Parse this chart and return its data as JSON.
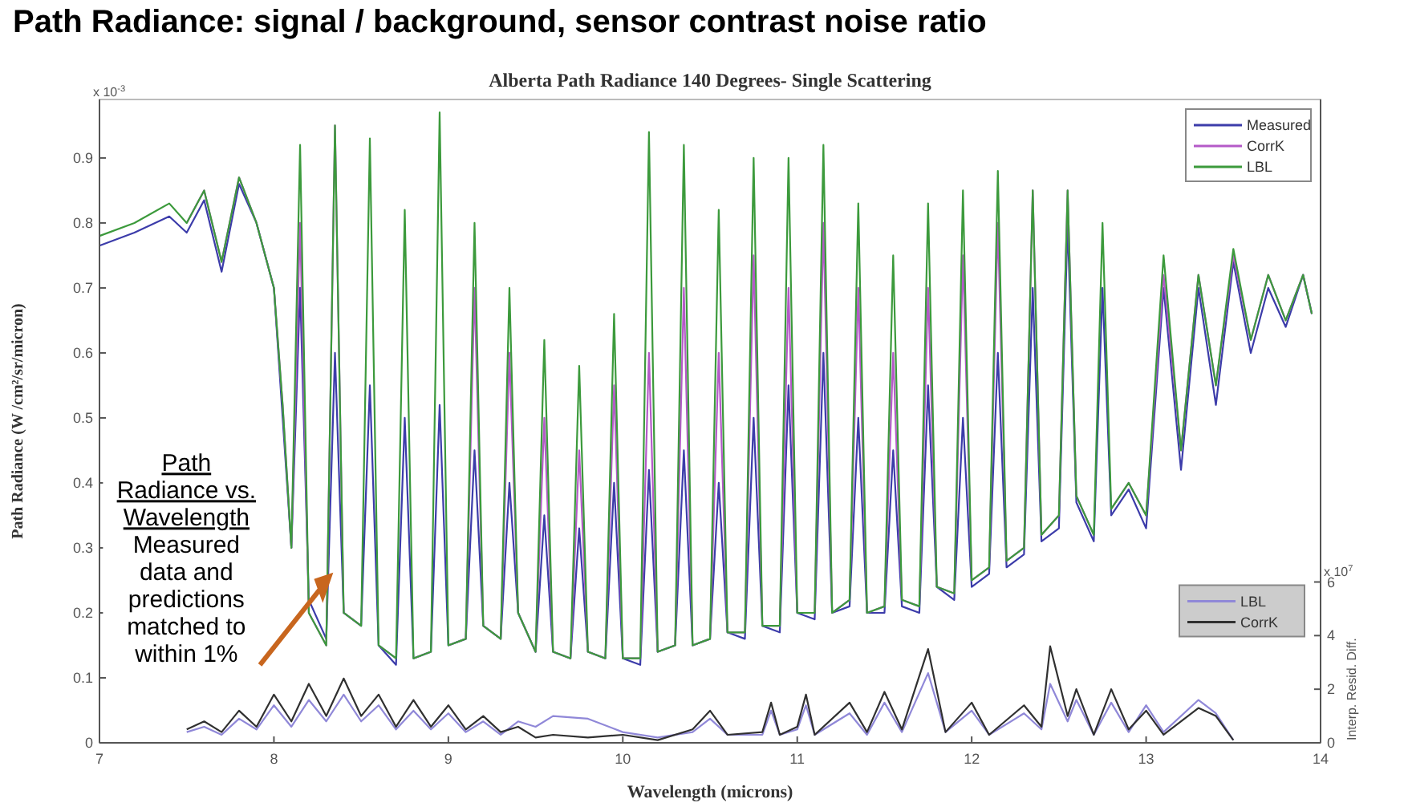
{
  "chart_data": {
    "type": "line",
    "title": "Path Radiance: signal / background, sensor contrast noise ratio",
    "subtitle": "Alberta Path Radiance 140 Degrees- Single Scattering",
    "xlabel": "Wavelength (microns)",
    "ylabel": "Path Radiance (W /cm²/sr/micron)",
    "y2label": "Interp. Resid. Diff.",
    "annotations": [
      "Path Radiance vs. Wavelength",
      "Measured data and predictions matched to within 1%",
      "x 10$^{-3}$",
      "x 10$^{7}$"
    ],
    "x": [
      7.0,
      7.2,
      7.4,
      7.5,
      7.6,
      7.7,
      7.8,
      7.9,
      8.0,
      8.05,
      8.1,
      8.15,
      8.2,
      8.3,
      8.35,
      8.4,
      8.5,
      8.55,
      8.6,
      8.7,
      8.75,
      8.8,
      8.9,
      8.95,
      9.0,
      9.1,
      9.15,
      9.2,
      9.3,
      9.35,
      9.4,
      9.5,
      9.55,
      9.6,
      9.7,
      9.75,
      9.8,
      9.9,
      9.95,
      10.0,
      10.1,
      10.15,
      10.2,
      10.3,
      10.35,
      10.4,
      10.5,
      10.55,
      10.6,
      10.7,
      10.75,
      10.8,
      10.9,
      10.95,
      11.0,
      11.1,
      11.15,
      11.2,
      11.3,
      11.35,
      11.4,
      11.5,
      11.55,
      11.6,
      11.7,
      11.75,
      11.8,
      11.9,
      11.95,
      12.0,
      12.1,
      12.15,
      12.2,
      12.3,
      12.35,
      12.4,
      12.5,
      12.55,
      12.6,
      12.7,
      12.75,
      12.8,
      12.9,
      13.0,
      13.1,
      13.2,
      13.3,
      13.4,
      13.5,
      13.6,
      13.7,
      13.8,
      13.9,
      13.95
    ],
    "xlim": [
      7,
      14
    ],
    "xticks": [
      7,
      8,
      9,
      10,
      11,
      12,
      13,
      14
    ],
    "ylim": [
      0,
      0.99
    ],
    "yticks": [
      0,
      0.1,
      0.2,
      0.3,
      0.4,
      0.5,
      0.6,
      0.7,
      0.8,
      0.9
    ],
    "y2lim": [
      0,
      24
    ],
    "y2ticks": [
      0,
      2,
      4,
      6
    ],
    "legend": "top right",
    "series": [
      {
        "name": "Measured",
        "color": "#3c3caa",
        "values": [
          0.765,
          0.785,
          0.81,
          0.785,
          0.835,
          0.725,
          0.86,
          0.8,
          0.7,
          0.5,
          0.3,
          0.7,
          0.22,
          0.16,
          0.6,
          0.2,
          0.18,
          0.55,
          0.15,
          0.12,
          0.5,
          0.13,
          0.14,
          0.52,
          0.15,
          0.16,
          0.45,
          0.18,
          0.16,
          0.4,
          0.2,
          0.14,
          0.35,
          0.14,
          0.13,
          0.33,
          0.14,
          0.13,
          0.4,
          0.13,
          0.12,
          0.42,
          0.14,
          0.15,
          0.45,
          0.15,
          0.16,
          0.4,
          0.17,
          0.16,
          0.5,
          0.18,
          0.17,
          0.55,
          0.2,
          0.19,
          0.6,
          0.2,
          0.21,
          0.5,
          0.2,
          0.2,
          0.45,
          0.21,
          0.2,
          0.55,
          0.24,
          0.22,
          0.5,
          0.24,
          0.26,
          0.6,
          0.27,
          0.29,
          0.7,
          0.31,
          0.33,
          0.8,
          0.37,
          0.31,
          0.7,
          0.35,
          0.39,
          0.33,
          0.7,
          0.42,
          0.7,
          0.52,
          0.74,
          0.6,
          0.7,
          0.64,
          0.72,
          0.66
        ]
      },
      {
        "name": "CorrK",
        "color": "#b45ac8",
        "values": [
          null,
          null,
          null,
          0.8,
          0.85,
          0.74,
          0.87,
          0.8,
          0.7,
          0.52,
          0.3,
          0.8,
          0.2,
          0.15,
          0.95,
          0.2,
          0.18,
          null,
          0.15,
          0.13,
          null,
          0.13,
          0.14,
          null,
          0.15,
          0.16,
          0.7,
          0.18,
          0.16,
          0.6,
          0.2,
          0.14,
          0.5,
          0.14,
          0.13,
          0.45,
          0.14,
          0.13,
          0.55,
          0.13,
          0.13,
          0.6,
          0.14,
          0.15,
          0.7,
          0.15,
          0.16,
          0.6,
          0.17,
          0.17,
          0.75,
          0.18,
          0.18,
          0.7,
          0.2,
          0.2,
          0.8,
          0.2,
          0.22,
          0.7,
          0.2,
          0.21,
          0.6,
          0.22,
          0.21,
          0.7,
          0.24,
          0.23,
          0.75,
          0.25,
          0.27,
          0.8,
          0.28,
          0.3,
          0.85,
          0.32,
          0.35,
          0.85,
          0.38,
          0.32,
          null,
          0.36,
          0.4,
          0.35,
          0.72,
          0.45,
          0.72,
          0.55,
          0.75,
          0.62,
          0.72,
          0.65,
          0.72,
          0.66
        ]
      },
      {
        "name": "LBL",
        "color": "#3c9a3c",
        "values": [
          0.78,
          0.8,
          0.83,
          0.8,
          0.85,
          0.74,
          0.87,
          0.8,
          0.7,
          0.52,
          0.3,
          0.92,
          0.2,
          0.15,
          0.95,
          0.2,
          0.18,
          0.93,
          0.15,
          0.13,
          0.82,
          0.13,
          0.14,
          0.97,
          0.15,
          0.16,
          0.8,
          0.18,
          0.16,
          0.7,
          0.2,
          0.14,
          0.62,
          0.14,
          0.13,
          0.58,
          0.14,
          0.13,
          0.66,
          0.13,
          0.13,
          0.94,
          0.14,
          0.15,
          0.92,
          0.15,
          0.16,
          0.82,
          0.17,
          0.17,
          0.9,
          0.18,
          0.18,
          0.9,
          0.2,
          0.2,
          0.92,
          0.2,
          0.22,
          0.83,
          0.2,
          0.21,
          0.75,
          0.22,
          0.21,
          0.83,
          0.24,
          0.23,
          0.85,
          0.25,
          0.27,
          0.88,
          0.28,
          0.3,
          0.85,
          0.32,
          0.35,
          0.85,
          0.38,
          0.32,
          0.8,
          0.36,
          0.4,
          0.35,
          0.75,
          0.45,
          0.72,
          0.55,
          0.76,
          0.62,
          0.72,
          0.65,
          0.72,
          0.66
        ]
      },
      {
        "name": "LBL",
        "color": "#9088d8",
        "axis": "y2",
        "x": [
          7.5,
          7.6,
          7.7,
          7.8,
          7.9,
          8.0,
          8.1,
          8.2,
          8.3,
          8.4,
          8.5,
          8.6,
          8.7,
          8.8,
          8.9,
          9.0,
          9.1,
          9.2,
          9.3,
          9.4,
          9.5,
          9.6,
          9.8,
          10.0,
          10.2,
          10.4,
          10.5,
          10.6,
          10.8,
          10.85,
          10.9,
          11.0,
          11.05,
          11.1,
          11.3,
          11.4,
          11.5,
          11.6,
          11.75,
          11.85,
          12.0,
          12.1,
          12.3,
          12.4,
          12.45,
          12.55,
          12.6,
          12.7,
          12.8,
          12.9,
          13.0,
          13.1,
          13.3,
          13.4,
          13.5
        ],
        "values": [
          0.4,
          0.6,
          0.3,
          0.9,
          0.5,
          1.4,
          0.6,
          1.6,
          0.8,
          1.8,
          0.8,
          1.4,
          0.5,
          1.2,
          0.5,
          1.1,
          0.4,
          0.8,
          0.3,
          0.8,
          0.6,
          1.0,
          0.9,
          0.4,
          0.2,
          0.4,
          0.9,
          0.3,
          0.3,
          1.2,
          0.3,
          0.5,
          1.4,
          0.3,
          1.1,
          0.3,
          1.5,
          0.4,
          2.6,
          0.4,
          1.2,
          0.3,
          1.1,
          0.5,
          2.2,
          0.8,
          1.6,
          0.3,
          1.5,
          0.4,
          1.4,
          0.4,
          1.6,
          1.1,
          0.1
        ]
      },
      {
        "name": "CorrK",
        "color": "#303030",
        "axis": "y2",
        "x": [
          7.5,
          7.6,
          7.7,
          7.8,
          7.9,
          8.0,
          8.1,
          8.2,
          8.3,
          8.4,
          8.5,
          8.6,
          8.7,
          8.8,
          8.9,
          9.0,
          9.1,
          9.2,
          9.3,
          9.4,
          9.5,
          9.6,
          9.8,
          10.0,
          10.2,
          10.4,
          10.5,
          10.6,
          10.8,
          10.85,
          10.9,
          11.0,
          11.05,
          11.1,
          11.3,
          11.4,
          11.5,
          11.6,
          11.75,
          11.85,
          12.0,
          12.1,
          12.3,
          12.4,
          12.45,
          12.55,
          12.6,
          12.7,
          12.8,
          12.9,
          13.0,
          13.1,
          13.3,
          13.4,
          13.5
        ],
        "values": [
          0.5,
          0.8,
          0.4,
          1.2,
          0.6,
          1.8,
          0.8,
          2.2,
          1.0,
          2.4,
          1.0,
          1.8,
          0.6,
          1.6,
          0.6,
          1.4,
          0.5,
          1.0,
          0.4,
          0.6,
          0.2,
          0.3,
          0.2,
          0.3,
          0.1,
          0.5,
          1.2,
          0.3,
          0.4,
          1.5,
          0.3,
          0.6,
          1.8,
          0.3,
          1.5,
          0.4,
          1.9,
          0.5,
          3.5,
          0.4,
          1.5,
          0.3,
          1.4,
          0.6,
          3.6,
          1.0,
          2.0,
          0.3,
          2.0,
          0.5,
          1.2,
          0.3,
          1.3,
          1.0,
          0.1
        ]
      }
    ]
  }
}
